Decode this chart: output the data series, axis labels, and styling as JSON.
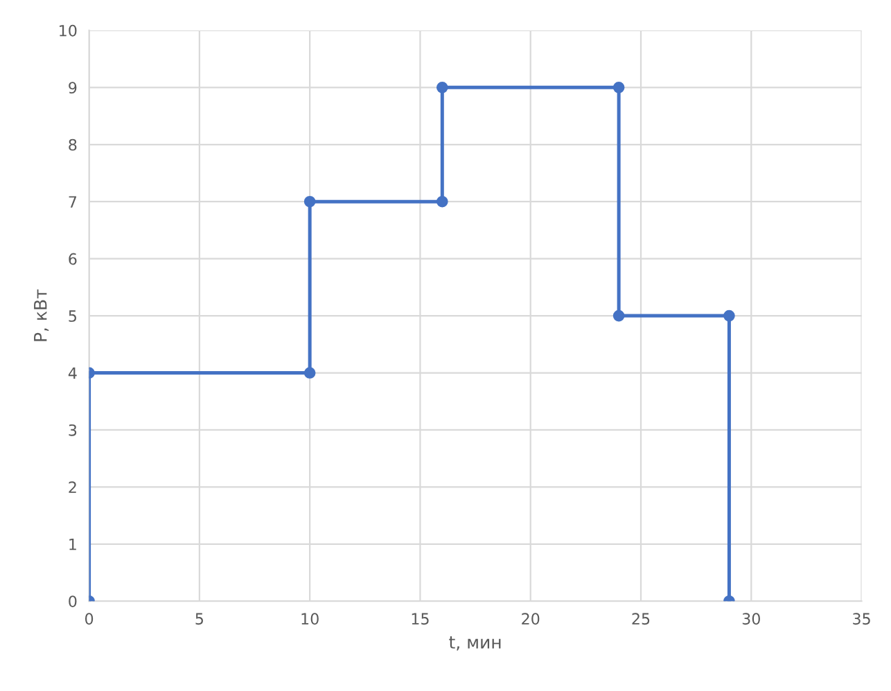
{
  "chart_data": {
    "type": "line",
    "xlabel": "t, мин",
    "ylabel": "P, кВт",
    "x": [
      0,
      0,
      10,
      10,
      16,
      16,
      24,
      24,
      29,
      29
    ],
    "series": [
      {
        "color": "#4472c4",
        "values": [
          0,
          4,
          4,
          7,
          7,
          9,
          9,
          5,
          5,
          0
        ]
      }
    ],
    "xlim": [
      0,
      35
    ],
    "xticks": [
      0,
      5,
      10,
      15,
      20,
      25,
      30,
      35
    ],
    "ylim": [
      0,
      10
    ],
    "yticks": [
      0,
      1,
      2,
      3,
      4,
      5,
      6,
      7,
      8,
      9,
      10
    ],
    "grid": true,
    "marker": "circle",
    "line_style": "solid"
  }
}
